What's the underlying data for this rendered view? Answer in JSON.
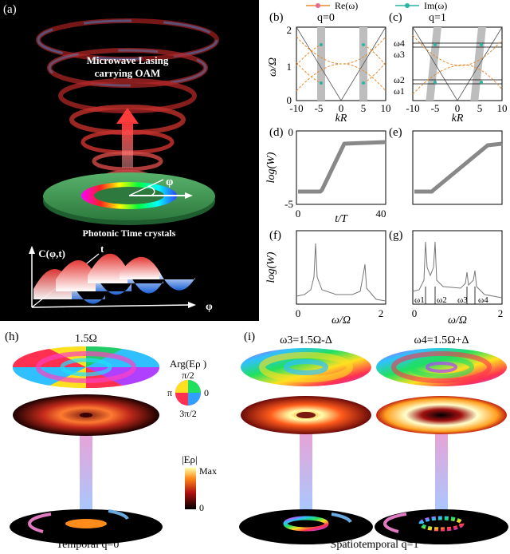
{
  "panel_a": {
    "label": "(a)",
    "title_line1": "Microwave Lasing",
    "title_line2": "carrying OAM",
    "phi_symbol": "φ",
    "caption": "Photonic Time crystals",
    "func_label": "C(φ,t)",
    "t_axis": "t",
    "phi_axis": "φ"
  },
  "legend": {
    "re": "Re(ω)",
    "im": "Im(ω)",
    "re_color": "#e8892c",
    "im_color": "#2bb3a6"
  },
  "panel_b": {
    "label": "(b)",
    "q_label": "q=0",
    "ylabel": "ω/Ω",
    "xlabel": "kR",
    "yticks": [
      "0",
      "1",
      "2"
    ],
    "xticks": [
      "-10",
      "-5",
      "0",
      "5",
      "10"
    ]
  },
  "panel_c": {
    "label": "(c)",
    "q_label": "q=1",
    "xlabel": "kR",
    "xticks": [
      "-10",
      "-5",
      "0",
      "5",
      "10"
    ],
    "omegas": [
      "ω4",
      "ω3",
      "ω2",
      "ω1"
    ]
  },
  "panel_d": {
    "label": "(d)",
    "ylabel": "log(W)",
    "xlabel": "t/T",
    "yticks": [
      "0",
      "-5"
    ],
    "xticks": [
      "0",
      "40"
    ]
  },
  "panel_e": {
    "label": "(e)"
  },
  "panel_f": {
    "label": "(f)",
    "ylabel": "log(W)",
    "xlabel": "ω/Ω",
    "xticks": [
      "0",
      "2"
    ]
  },
  "panel_g": {
    "label": "(g)",
    "xlabel": "ω/Ω",
    "xticks": [
      "0",
      "2"
    ],
    "omegas": [
      "ω1",
      "ω2",
      "ω3",
      "ω4"
    ]
  },
  "panel_h": {
    "label": "(h)",
    "freq": "1.5Ω",
    "caption": "Temporal q=0",
    "arg_label": "Arg(Eρ )",
    "arg_ticks": {
      "top": "π/2",
      "left": "π",
      "right": "0",
      "bottom": "3π/2"
    },
    "amp_label": "|Eρ|",
    "amp_max": "Max",
    "amp_min": "0"
  },
  "panel_i": {
    "label": "(i)",
    "freq_left": "ω3=1.5Ω-Δ",
    "freq_right": "ω4=1.5Ω+Δ",
    "caption": "Spatiotemporal q=1"
  }
}
